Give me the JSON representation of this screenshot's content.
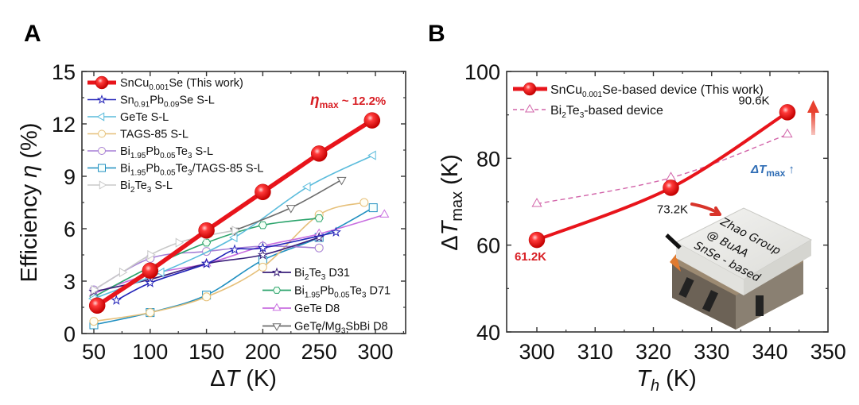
{
  "panels": {
    "a_letter": "A",
    "b_letter": "B"
  },
  "colors": {
    "red": "#e8141b",
    "annotation_red": "#d81e24",
    "annotation_blue": "#2f6db5",
    "pink_dashed": "#d264a9"
  },
  "chart_data": [
    {
      "panel": "A",
      "type": "line",
      "title": "",
      "xlabel": "ΔT (K)",
      "ylabel": "Efficiency η (%)",
      "xlim": [
        40,
        325
      ],
      "ylim": [
        0,
        15
      ],
      "xticks": [
        50,
        100,
        150,
        200,
        250,
        300
      ],
      "yticks": [
        0,
        3,
        6,
        9,
        12,
        15
      ],
      "grid": false,
      "legend_top_left": [
        {
          "key": "sncu",
          "main": "SnCu",
          "sub": "0.001",
          "rest": "Se (This work)"
        },
        {
          "key": "snpb",
          "parts": [
            [
              "Sn",
              ""
            ],
            [
              "0.91",
              "sub"
            ],
            [
              "Pb",
              ""
            ],
            [
              "0.09",
              "sub"
            ],
            [
              "Se S-L",
              ""
            ]
          ]
        },
        {
          "key": "gete_sl",
          "parts": [
            [
              "GeTe S-L",
              ""
            ]
          ]
        },
        {
          "key": "tags",
          "parts": [
            [
              "TAGS-85 S-L",
              ""
            ]
          ]
        },
        {
          "key": "bipb_sl",
          "parts": [
            [
              "Bi",
              ""
            ],
            [
              "1.95",
              "sub"
            ],
            [
              "Pb",
              ""
            ],
            [
              "0.05",
              "sub"
            ],
            [
              "Te",
              ""
            ],
            [
              "3",
              "sub"
            ],
            [
              " S-L",
              ""
            ]
          ]
        },
        {
          "key": "bipb_tags",
          "parts": [
            [
              "Bi",
              ""
            ],
            [
              "1.95",
              "sub"
            ],
            [
              "Pb",
              ""
            ],
            [
              "0.05",
              "sub"
            ],
            [
              "Te",
              ""
            ],
            [
              "3",
              "sub"
            ],
            [
              "/TAGS-85 S-L",
              ""
            ]
          ]
        },
        {
          "key": "bite_sl",
          "parts": [
            [
              "Bi",
              ""
            ],
            [
              "2",
              "sub"
            ],
            [
              "Te",
              ""
            ],
            [
              "3",
              "sub"
            ],
            [
              " S-L",
              ""
            ]
          ]
        }
      ],
      "legend_bottom_right": [
        {
          "key": "bite_d31",
          "parts": [
            [
              "Bi",
              ""
            ],
            [
              "2",
              "sub"
            ],
            [
              "Te",
              ""
            ],
            [
              "3",
              "sub"
            ],
            [
              " D31",
              ""
            ]
          ]
        },
        {
          "key": "bipb_d71",
          "parts": [
            [
              "Bi",
              ""
            ],
            [
              "1.95",
              "sub"
            ],
            [
              "Pb",
              ""
            ],
            [
              "0.05",
              "sub"
            ],
            [
              "Te",
              ""
            ],
            [
              "3",
              "sub"
            ],
            [
              " D71",
              ""
            ]
          ]
        },
        {
          "key": "gete_d8",
          "parts": [
            [
              "GeTe D8",
              ""
            ]
          ]
        },
        {
          "key": "gete_mg_d8",
          "parts": [
            [
              "GeTe/Mg",
              ""
            ],
            [
              "3",
              "sub"
            ],
            [
              "SbBi D8",
              ""
            ]
          ]
        }
      ],
      "series": [
        {
          "key": "bipb_tags",
          "name": "Bi1.95Pb0.05Te3/TAGS-85 S-L",
          "color": "#1f8fc0",
          "marker": "square",
          "x": [
            50,
            100,
            150,
            200,
            250,
            298
          ],
          "y": [
            0.5,
            1.2,
            2.2,
            4.2,
            5.5,
            7.2
          ]
        },
        {
          "key": "tags",
          "name": "TAGS-85 S-L",
          "color": "#e6c07a",
          "marker": "circle",
          "x": [
            50,
            100,
            150,
            200,
            250,
            290
          ],
          "y": [
            0.7,
            1.2,
            2.1,
            3.8,
            6.8,
            7.5
          ]
        },
        {
          "key": "gete_d8",
          "name": "GeTe D8",
          "color": "#c86ee0",
          "marker": "triangle-up",
          "x": [
            50,
            100,
            150,
            200,
            250,
            308
          ],
          "y": [
            2.3,
            3.4,
            4.0,
            5.0,
            5.7,
            6.8
          ]
        },
        {
          "key": "bipb_sl",
          "name": "Bi1.95Pb0.05Te3 S-L",
          "color": "#a57fd6",
          "marker": "circle",
          "x": [
            50,
            100,
            150,
            200,
            250
          ],
          "y": [
            2.5,
            4.3,
            4.7,
            5.0,
            4.9
          ]
        },
        {
          "key": "bipb_d71",
          "name": "Bi1.95Pb0.05Te3 D71",
          "color": "#2aa36b",
          "marker": "hexagon",
          "x": [
            50,
            100,
            150,
            200,
            250
          ],
          "y": [
            2.1,
            3.8,
            5.2,
            6.2,
            6.6
          ]
        },
        {
          "key": "bite_d31",
          "name": "Bi2Te3 D31",
          "color": "#3a1f7a",
          "marker": "star",
          "x": [
            50,
            100,
            150,
            200,
            250
          ],
          "y": [
            2.4,
            3.1,
            4.0,
            4.5,
            5.5
          ]
        },
        {
          "key": "snpb",
          "name": "Sn0.91Pb0.09Se S-L",
          "color": "#2222b8",
          "marker": "star",
          "x": [
            70,
            100,
            150,
            175,
            200,
            265
          ],
          "y": [
            1.9,
            2.9,
            4.0,
            4.8,
            4.9,
            5.8
          ]
        },
        {
          "key": "gete_sl",
          "name": "GeTe S-L",
          "color": "#5bbcdc",
          "marker": "triangle-left",
          "x": [
            50,
            110,
            175,
            240,
            298
          ],
          "y": [
            2.0,
            3.5,
            5.5,
            8.4,
            10.2
          ]
        },
        {
          "key": "gete_mg_d8",
          "name": "GeTe/Mg3SbBi D8",
          "color": "#6b6b6b",
          "marker": "triangle-down",
          "x": [
            175,
            225,
            270
          ],
          "y": [
            5.9,
            7.2,
            8.8
          ]
        },
        {
          "key": "bite_sl",
          "name": "Bi2Te3 S-L",
          "color": "#c8c8c8",
          "marker": "triangle-right",
          "x": [
            50,
            75,
            100,
            125,
            150,
            175
          ],
          "y": [
            2.5,
            3.5,
            4.5,
            5.2,
            5.6,
            5.9
          ]
        },
        {
          "key": "sncu",
          "name": "SnCu0.001Se (This work)",
          "color": "#e8141b",
          "marker": "sphere",
          "x": [
            53,
            100,
            150,
            200,
            250,
            297
          ],
          "y": [
            1.6,
            3.6,
            5.9,
            8.1,
            10.3,
            12.2
          ]
        }
      ],
      "annotations": [
        {
          "text_main": "η",
          "text_sub": "max",
          "text_rest": " ~ 12.2%"
        }
      ]
    },
    {
      "panel": "B",
      "type": "line",
      "title": "",
      "xlabel": "T_h (K)",
      "ylabel": "ΔT_max (K)",
      "xlim": [
        295,
        350
      ],
      "ylim": [
        40,
        100
      ],
      "xticks": [
        300,
        310,
        320,
        330,
        340,
        350
      ],
      "yticks": [
        40,
        60,
        80,
        100
      ],
      "grid": false,
      "legend": [
        {
          "key": "sncu_dev",
          "parts": [
            [
              "SnCu",
              ""
            ],
            [
              "0.001",
              "sub"
            ],
            [
              "Se-based device (This work)",
              ""
            ]
          ]
        },
        {
          "key": "bite_dev",
          "parts": [
            [
              "Bi",
              ""
            ],
            [
              "2",
              "sub"
            ],
            [
              "Te",
              ""
            ],
            [
              "3",
              "sub"
            ],
            [
              "-based device",
              ""
            ]
          ]
        }
      ],
      "series": [
        {
          "key": "bite_dev",
          "name": "Bi2Te3-based device",
          "color": "#d264a9",
          "marker": "triangle-up",
          "dashed": true,
          "x": [
            300,
            323,
            343
          ],
          "y": [
            69.5,
            75.5,
            85.5
          ]
        },
        {
          "key": "sncu_dev",
          "name": "SnCu0.001Se-based device (This work)",
          "color": "#e8141b",
          "marker": "sphere",
          "dashed": false,
          "x": [
            300,
            323,
            343
          ],
          "y": [
            61.2,
            73.2,
            90.6
          ]
        }
      ],
      "data_labels": [
        "61.2K",
        "73.2K",
        "90.6K"
      ],
      "annotations": [
        {
          "text_main": "ΔT",
          "text_sub": "max",
          "text_rest": " ↑"
        }
      ],
      "inset_photo_text": [
        "Zhao Group",
        "@ BuAA",
        "SnSe - based"
      ]
    }
  ]
}
